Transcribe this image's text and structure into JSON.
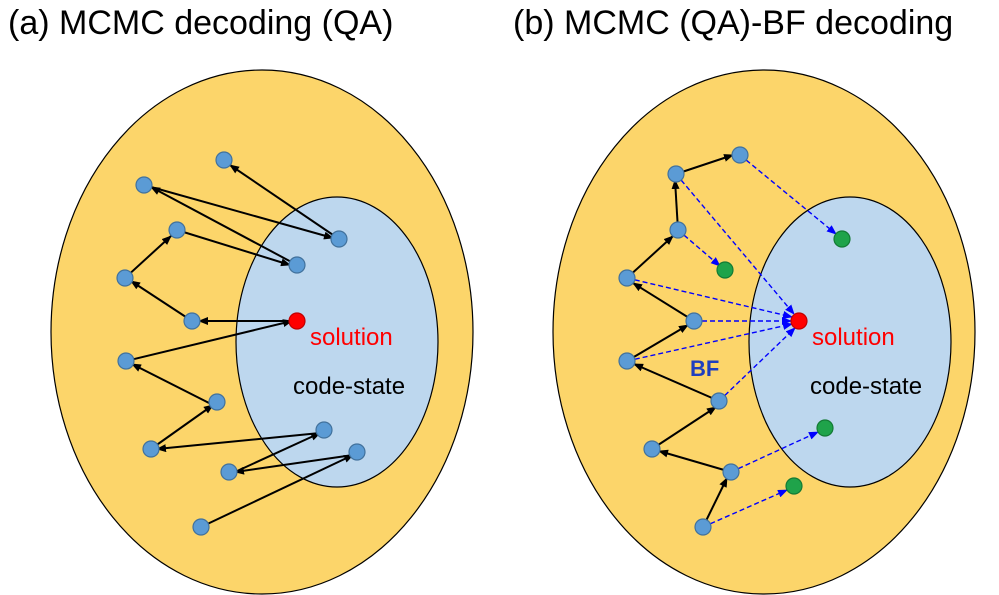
{
  "panels": [
    {
      "title": "(a) MCMC decoding (QA)",
      "solution_label": "solution",
      "code_state_label": "code-state"
    },
    {
      "title": "(b) MCMC (QA)-BF decoding",
      "solution_label": "solution",
      "code_state_label": "code-state",
      "bf_label": "BF"
    }
  ],
  "colors": {
    "outer_region": "#FCD56A",
    "code_state_region": "#BDD7EE",
    "walk_node": "#5B9BD5",
    "solution_node": "#FF0000",
    "code_state_node": "#1FA34A",
    "walk_arrow": "#000000",
    "bf_arrow": "#0000FF",
    "solution_text": "#FF0000",
    "bf_text": "#1F3FBF"
  }
}
